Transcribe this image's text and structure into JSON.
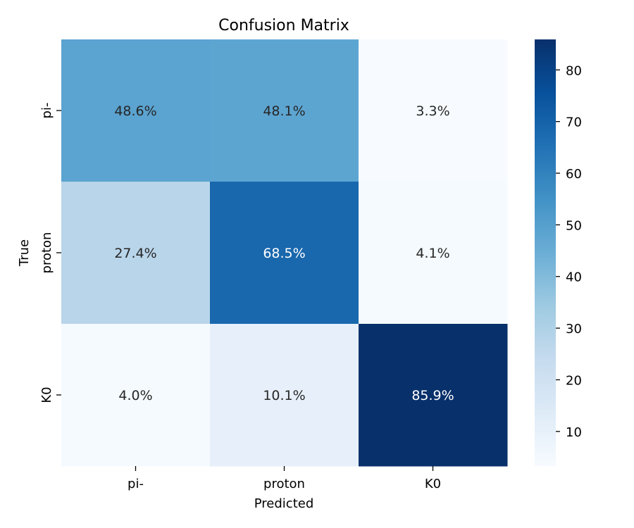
{
  "chart_data": {
    "type": "heatmap",
    "title": "Confusion Matrix",
    "xlabel": "Predicted",
    "ylabel": "True",
    "x_categories": [
      "pi-",
      "proton",
      "K0"
    ],
    "y_categories": [
      "pi-",
      "proton",
      "K0"
    ],
    "values": [
      [
        48.6,
        48.1,
        3.3
      ],
      [
        27.4,
        68.5,
        4.1
      ],
      [
        4.0,
        10.1,
        85.9
      ]
    ],
    "cell_labels": [
      [
        "48.6%",
        "48.1%",
        "3.3%"
      ],
      [
        "27.4%",
        "68.5%",
        "4.1%"
      ],
      [
        "4.0%",
        "10.1%",
        "85.9%"
      ]
    ],
    "colormap": "Blues",
    "color_range": [
      3.3,
      85.9
    ],
    "colorbar": {
      "ticks": [
        10,
        20,
        30,
        40,
        50,
        60,
        70,
        80
      ],
      "tick_labels": [
        "10",
        "20",
        "30",
        "40",
        "50",
        "60",
        "70",
        "80"
      ]
    },
    "grid": false,
    "legend": "colorbar-right"
  }
}
